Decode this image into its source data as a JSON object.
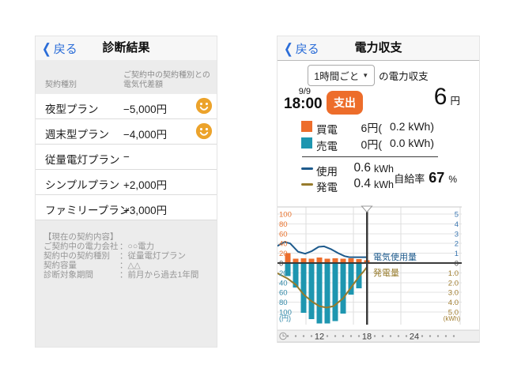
{
  "left_screen": {
    "nav": {
      "back_icon": "❮",
      "back": "戻る",
      "title": "診断結果"
    },
    "table": {
      "col1_header": "契約種別",
      "col2_header_line1": "ご契約中の契約種別との",
      "col2_header_line2": "電気代差額",
      "rows": [
        {
          "plan": "夜型プラン",
          "diff": "−5,000円",
          "smiley": true
        },
        {
          "plan": "週末型プラン",
          "diff": "−4,000円",
          "smiley": true
        },
        {
          "plan": "従量電灯プラン",
          "diff": "−",
          "smiley": false
        },
        {
          "plan": "シンプルプラン",
          "diff": "+2,000円",
          "smiley": false
        },
        {
          "plan": "ファミリープラン",
          "diff": "+3,000円",
          "smiley": false
        }
      ]
    },
    "current_contract": {
      "title": "【現在の契約内容】",
      "lines": [
        {
          "label": "ご契約中の電力会社",
          "value": "：○○電力"
        },
        {
          "label": "契約中の契約種別",
          "value": "：従量電灯プラン"
        },
        {
          "label": "契約容量",
          "value": "：△△"
        },
        {
          "label": "診断対象期間",
          "value": "：前月から過去1年間"
        }
      ]
    },
    "smiley_color": "#eca32b"
  },
  "right_screen": {
    "nav": {
      "back_icon": "❮",
      "back": "戻る",
      "title": "電力収支"
    },
    "period_selector": {
      "value": "1時間ごと",
      "arrow": "▼",
      "suffix": "の電力収支"
    },
    "summary": {
      "date": "9/9",
      "time": "18:00",
      "badge": "支出",
      "amount": "6",
      "unit": "円"
    },
    "breakdown": [
      {
        "key": "buy",
        "label": "買電",
        "yen": "6",
        "kwh": "0.2",
        "color": "#ed6d2b"
      },
      {
        "key": "sell",
        "label": "売電",
        "yen": "0",
        "kwh": "0.0",
        "color": "#1e96b0"
      }
    ],
    "lines_legend": [
      {
        "key": "usage",
        "label": "使用",
        "value": "0.6",
        "unit": "kWh",
        "color": "#1d5a8c"
      },
      {
        "key": "generation",
        "label": "発電",
        "value": "0.4",
        "unit": "kWh",
        "color": "#977b2c"
      }
    ],
    "self_sufficiency": {
      "label": "自給率",
      "value": "67",
      "unit": "%"
    }
  },
  "chart_data": {
    "type": "bar+line combo, hourly electricity balance",
    "bar_hours": [
      8,
      9,
      10,
      11,
      12,
      13,
      14,
      15,
      16,
      17,
      18
    ],
    "series": [
      {
        "name_key": "buy",
        "name": "買電",
        "type": "bar",
        "unit": "円",
        "color": "#ed6d2b",
        "direction": "up",
        "values": [
          20,
          9,
          10,
          9,
          11,
          9,
          10,
          9,
          10,
          8,
          6
        ]
      },
      {
        "name_key": "sell",
        "name": "売電",
        "type": "bar",
        "unit": "円",
        "color": "#1e96b0",
        "direction": "down",
        "values": [
          25,
          48,
          100,
          113,
          122,
          122,
          117,
          102,
          63,
          50,
          0
        ]
      },
      {
        "name_key": "usage",
        "name": "使用",
        "type": "line",
        "unit": "kWh",
        "color": "#1d5a8c",
        "direction": "up",
        "points": [
          [
            6.7,
            1.75
          ],
          [
            7.6,
            2.15
          ],
          [
            8.3,
            2.0
          ],
          [
            9.3,
            1.15
          ],
          [
            10.2,
            0.95
          ],
          [
            11.0,
            1.2
          ],
          [
            11.9,
            1.65
          ],
          [
            12.6,
            1.7
          ],
          [
            13.5,
            1.4
          ],
          [
            14.4,
            1.0
          ],
          [
            15.2,
            0.7
          ],
          [
            15.8,
            0.6
          ],
          [
            18,
            0.6
          ]
        ]
      },
      {
        "name_key": "generation",
        "name": "発電",
        "type": "line",
        "unit": "kWh",
        "color": "#977b2c",
        "direction": "down",
        "points": [
          [
            6.7,
            1.05
          ],
          [
            8,
            1.6
          ],
          [
            9,
            2.2
          ],
          [
            10,
            3.2
          ],
          [
            11,
            3.9
          ],
          [
            12,
            4.4
          ],
          [
            12.9,
            4.55
          ],
          [
            13.8,
            4.4
          ],
          [
            15,
            3.6
          ],
          [
            16,
            2.5
          ],
          [
            17,
            1.4
          ],
          [
            17.6,
            0.85
          ],
          [
            18,
            0.42
          ]
        ]
      }
    ],
    "left_axis": {
      "unit": "(円)",
      "ticks_up": [
        100,
        80,
        60,
        40,
        20
      ],
      "zero": "0",
      "ticks_down": [
        20,
        40,
        60,
        80,
        100
      ],
      "color_up": "#e9732f",
      "color_down": "#3289a8"
    },
    "right_axis": {
      "unit": "(kWh)",
      "ticks_up": [
        5,
        4,
        3,
        2,
        1
      ],
      "zero": "0",
      "ticks_down": [
        "1.0",
        "2.0",
        "3.0",
        "4.0",
        "5.0"
      ],
      "color_up": "#3a76b0",
      "color_down": "#a07c2e"
    },
    "x_axis": {
      "labels": [
        {
          "hour": 12,
          "text": "12"
        },
        {
          "hour": 18,
          "text": "18"
        },
        {
          "hour": 24,
          "text": "24"
        }
      ],
      "dot_hours": [
        8,
        9,
        10,
        11,
        13,
        14,
        15,
        16,
        17,
        19,
        20,
        21,
        22,
        23,
        25,
        26,
        27,
        28,
        29
      ]
    },
    "cursor_hour": 18,
    "grid": true,
    "annotations": [
      {
        "key": "usage",
        "text": "電気使用量",
        "color": "#1d5a8c"
      },
      {
        "key": "generation",
        "text": "発電量",
        "color": "#977b2c"
      }
    ]
  }
}
